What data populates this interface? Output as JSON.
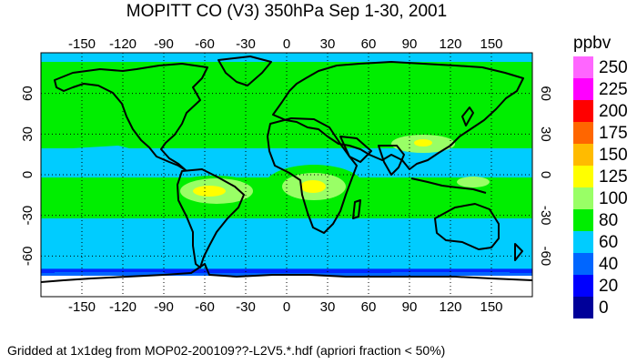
{
  "title": "MOPITT CO (V3) 350hPa Sep 1-30, 2001",
  "footer": "Gridded at 1x1deg from MOP02-200109??-L2V5.*.hdf (apriori fraction < 50%)",
  "colorbar": {
    "unit": "ppbv",
    "levels": [
      {
        "label": "250",
        "color": "#ff66ff"
      },
      {
        "label": "225",
        "color": "#ff00ff"
      },
      {
        "label": "200",
        "color": "#ff0000"
      },
      {
        "label": "175",
        "color": "#ff6600"
      },
      {
        "label": "150",
        "color": "#ffbb00"
      },
      {
        "label": "125",
        "color": "#ffff00"
      },
      {
        "label": "100",
        "color": "#99ff66"
      },
      {
        "label": "80",
        "color": "#00ee00"
      },
      {
        "label": "60",
        "color": "#00ccff"
      },
      {
        "label": "40",
        "color": "#0066ff"
      },
      {
        "label": "20",
        "color": "#0000ff"
      },
      {
        "label": "0",
        "color": "#000099"
      }
    ]
  },
  "map": {
    "lon_ticks": [
      "-150",
      "-120",
      "-90",
      "-60",
      "-30",
      "0",
      "30",
      "60",
      "90",
      "120",
      "150"
    ],
    "lat_ticks": [
      "60",
      "30",
      "0",
      "-30",
      "-60"
    ],
    "lon_range": [
      -180,
      180
    ],
    "lat_range": [
      -90,
      90
    ],
    "grid": "dotted"
  }
}
